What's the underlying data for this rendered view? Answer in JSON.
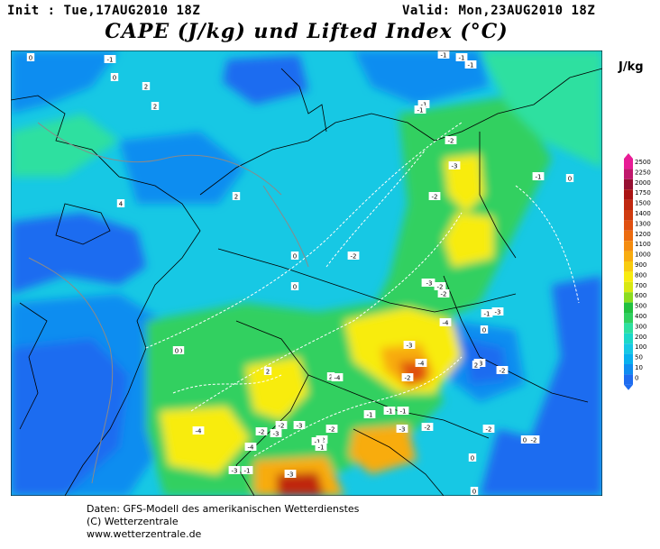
{
  "header": {
    "init": "Init : Tue,17AUG2010 18Z",
    "valid": "Valid: Mon,23AUG2010 18Z",
    "title": "CAPE (J/kg) und Lifted Index (°C)"
  },
  "legend": {
    "unit": "J/kg",
    "levels": [
      "0",
      "10",
      "50",
      "100",
      "200",
      "300",
      "400",
      "500",
      "600",
      "700",
      "800",
      "900",
      "1000",
      "1100",
      "1200",
      "1300",
      "1400",
      "1500",
      "1750",
      "2000",
      "2250",
      "2500"
    ],
    "colors": [
      "#1e6cf0",
      "#0f8df0",
      "#08b0ee",
      "#17c8e4",
      "#1cd8c8",
      "#2ee0a0",
      "#30d060",
      "#22c040",
      "#8cdc20",
      "#d8e814",
      "#f8ec10",
      "#f8cc10",
      "#f8ac10",
      "#f48c10",
      "#ec6c10",
      "#e05010",
      "#d03c10",
      "#c02810",
      "#aa1414",
      "#961032",
      "#c0186c",
      "#e81c96"
    ]
  },
  "map": {
    "lifted_index_labels": [
      {
        "t": "0"
      },
      {
        "t": "-1"
      },
      {
        "t": "-1"
      },
      {
        "t": "-1"
      },
      {
        "t": "-1"
      },
      {
        "t": "0"
      },
      {
        "t": "2"
      },
      {
        "t": "2"
      },
      {
        "t": "-1"
      },
      {
        "t": "-1"
      },
      {
        "t": "-2"
      },
      {
        "t": "-3"
      },
      {
        "t": "-2"
      },
      {
        "t": "-1"
      },
      {
        "t": "0"
      },
      {
        "t": "2"
      },
      {
        "t": "4"
      },
      {
        "t": "0"
      },
      {
        "t": "0"
      },
      {
        "t": "-2"
      },
      {
        "t": "-2"
      },
      {
        "t": "-2"
      },
      {
        "t": "-3"
      },
      {
        "t": "-3"
      },
      {
        "t": "-1"
      },
      {
        "t": "-2"
      },
      {
        "t": "0"
      },
      {
        "t": "-4"
      },
      {
        "t": "-3"
      },
      {
        "t": "-3"
      },
      {
        "t": "-4"
      },
      {
        "t": "2"
      },
      {
        "t": "-2"
      },
      {
        "t": "2"
      },
      {
        "t": "2"
      },
      {
        "t": "-4"
      },
      {
        "t": "-2"
      },
      {
        "t": "-2"
      },
      {
        "t": "-3"
      },
      {
        "t": "-2"
      },
      {
        "t": "-1"
      },
      {
        "t": "-1"
      },
      {
        "t": "-1"
      },
      {
        "t": "-3"
      },
      {
        "t": "-4"
      },
      {
        "t": "-2"
      },
      {
        "t": "-3"
      },
      {
        "t": "-2"
      },
      {
        "t": "-1"
      },
      {
        "t": "-1"
      },
      {
        "t": "-4"
      },
      {
        "t": "0"
      },
      {
        "t": "-3"
      },
      {
        "t": "-3"
      },
      {
        "t": "-1"
      },
      {
        "t": "0"
      },
      {
        "t": "-2"
      },
      {
        "t": "0"
      },
      {
        "t": "0"
      },
      {
        "t": "-2"
      },
      {
        "t": "-2"
      },
      {
        "t": "0"
      }
    ]
  },
  "credits": {
    "line1": "Daten: GFS-Modell des amerikanischen Wetterdienstes",
    "line2": "(C) Wetterzentrale",
    "line3": "www.wetterzentrale.de"
  }
}
